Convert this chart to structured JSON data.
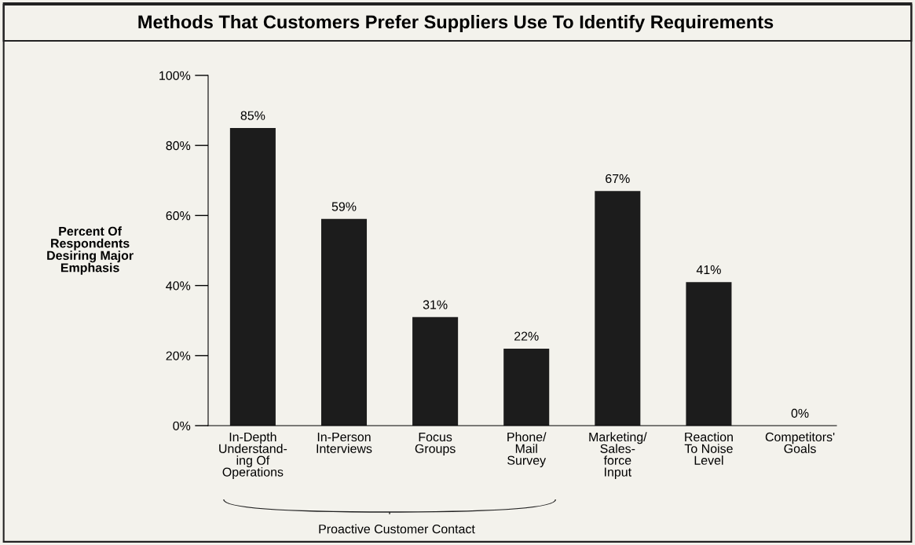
{
  "chart_data": {
    "type": "bar",
    "title": "Methods That Customers Prefer Suppliers Use To Identify Requirements",
    "ylabel": "Percent Of\nRespondents\nDesiring Major\nEmphasis",
    "categories": [
      "In-Depth\nUnderstand-\ning Of\nOperations",
      "In-Person\nInterviews",
      "Focus\nGroups",
      "Phone/\nMail\nSurvey",
      "Marketing/\nSales-\nforce\nInput",
      "Reaction\nTo Noise\nLevel",
      "Competitors'\nGoals"
    ],
    "values": [
      85,
      59,
      31,
      22,
      67,
      41,
      0
    ],
    "value_labels": [
      "85%",
      "59%",
      "31%",
      "22%",
      "67%",
      "41%",
      "0%"
    ],
    "color": "#1c1c1c",
    "ylim": [
      0,
      100
    ],
    "yticks": [
      {
        "value": 0,
        "label": "0%"
      },
      {
        "value": 20,
        "label": "20%"
      },
      {
        "value": 40,
        "label": "40%"
      },
      {
        "value": 60,
        "label": "60%"
      },
      {
        "value": 80,
        "label": "80%"
      },
      {
        "value": 100,
        "label": "100%"
      }
    ],
    "annotations": [
      {
        "text": "Proactive Customer Contact"
      }
    ],
    "grid": false
  }
}
